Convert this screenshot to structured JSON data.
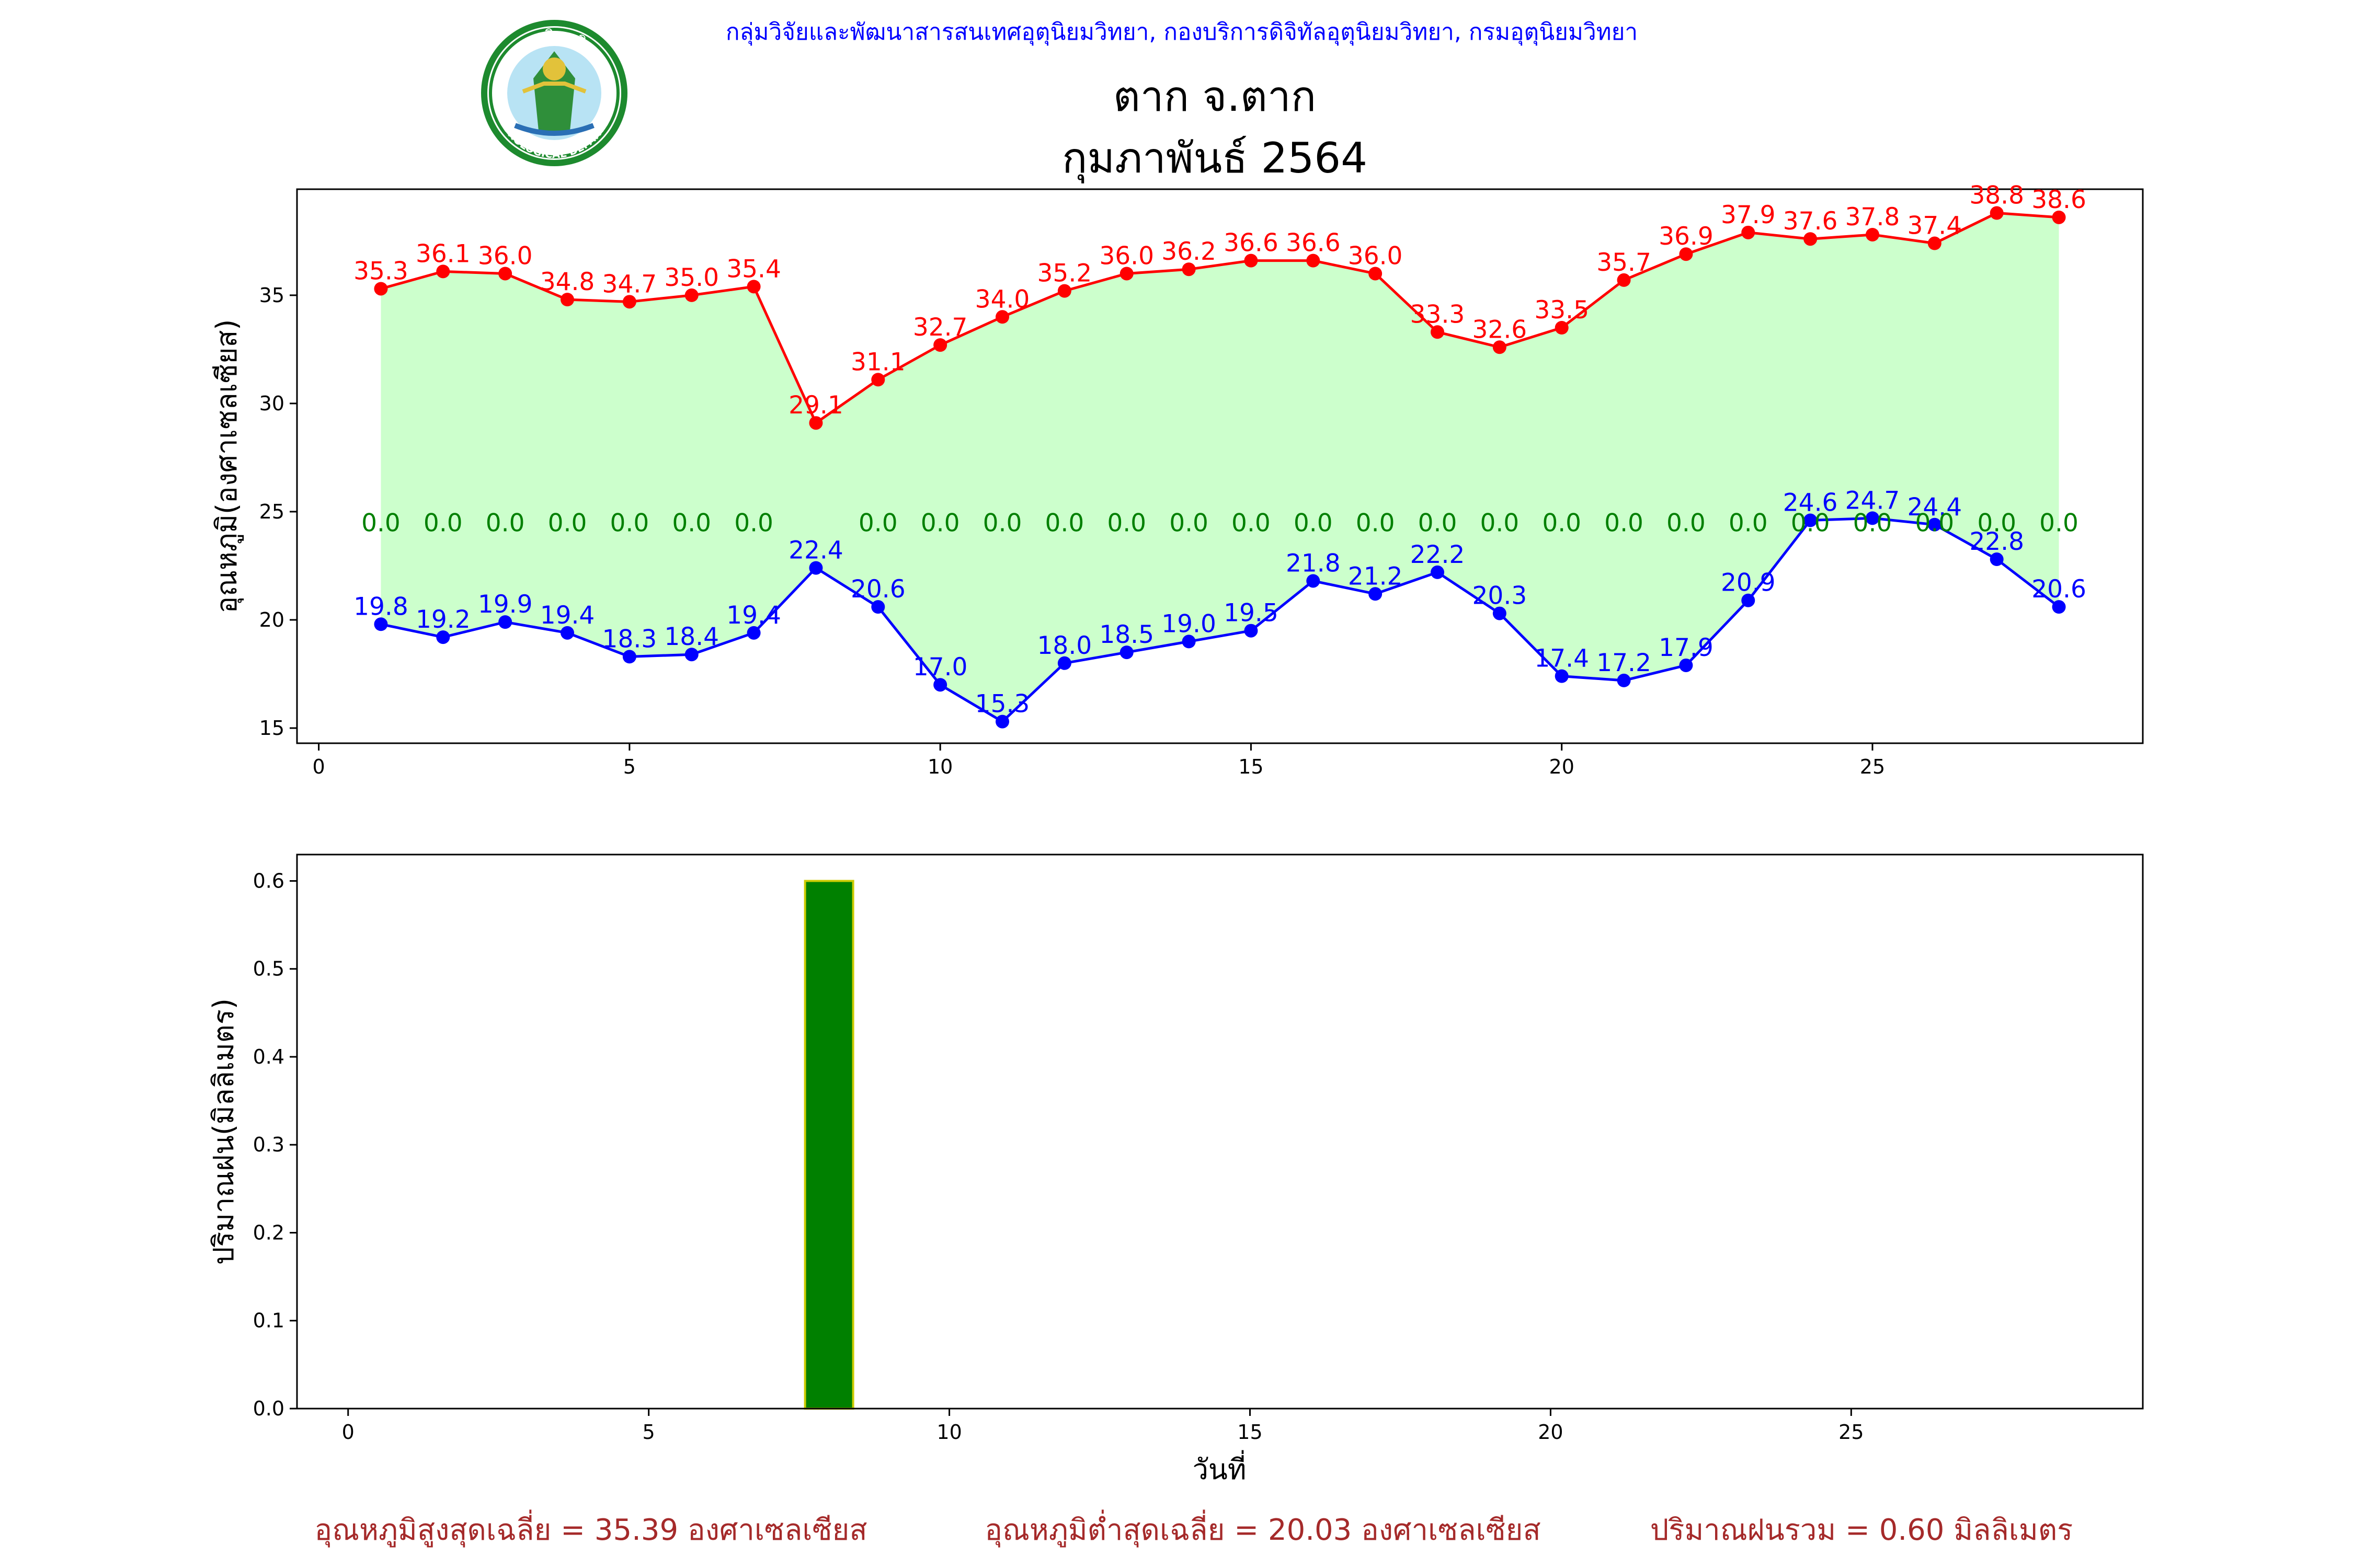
{
  "header": {
    "department_line": "กลุ่มวิจัยและพัฒนาสารสนเทศอุตุนิยมวิทยา, กองบริการดิจิทัลอุตุนิยมวิทยา, กรมอุตุนิยมวิทยา",
    "logo_text_top": "กรมอุตุนิยมวิทยา",
    "logo_text_bottom": "METEOROLOGICAL DEPARTMENT"
  },
  "colors": {
    "max_line": "#ff0000",
    "min_line": "#0000ff",
    "rain_label": "#008000",
    "fill_band": "#ccffcc",
    "rain_bar": "#008000",
    "rain_bar_edge": "#cccc00",
    "department_text": "#0000ff",
    "footer_text": "#a52a2a"
  },
  "chart_data": [
    {
      "type": "line",
      "title": "ตาก จ.ตาก",
      "subtitle": "กุมภาพันธ์ 2564",
      "ylabel": "อุณหภูมิ(องศาเซลเซียส)",
      "xlim": [
        -0.35,
        29.35
      ],
      "ylim": [
        14.3,
        39.9
      ],
      "xticks": [
        0,
        5,
        10,
        15,
        20,
        25
      ],
      "yticks": [
        15,
        20,
        25,
        30,
        35
      ],
      "x": [
        1,
        2,
        3,
        4,
        5,
        6,
        7,
        8,
        9,
        10,
        11,
        12,
        13,
        14,
        15,
        16,
        17,
        18,
        19,
        20,
        21,
        22,
        23,
        24,
        25,
        26,
        27,
        28
      ],
      "series": [
        {
          "key": "max",
          "values": [
            35.3,
            36.1,
            36.0,
            34.8,
            34.7,
            35.0,
            35.4,
            29.1,
            31.1,
            32.7,
            34.0,
            35.2,
            36.0,
            36.2,
            36.6,
            36.6,
            36.0,
            33.3,
            32.6,
            33.5,
            35.7,
            36.9,
            37.9,
            37.6,
            37.8,
            37.4,
            38.8,
            38.6
          ],
          "labels": [
            "35.3",
            "36.1",
            "36.0",
            "34.8",
            "34.7",
            "35.0",
            "35.4",
            "29.1",
            "31.1",
            "32.7",
            "34.0",
            "35.2",
            "36.0",
            "36.2",
            "36.6",
            "36.6",
            "36.0",
            "33.3",
            "32.6",
            "33.5",
            "35.7",
            "36.9",
            "37.9",
            "37.6",
            "37.8",
            "37.4",
            "38.8",
            "38.6"
          ]
        },
        {
          "key": "min",
          "values": [
            19.8,
            19.2,
            19.9,
            19.4,
            18.3,
            18.4,
            19.4,
            22.4,
            20.6,
            17.0,
            15.3,
            18.0,
            18.5,
            19.0,
            19.5,
            21.8,
            21.2,
            22.2,
            20.3,
            17.4,
            17.2,
            17.9,
            20.9,
            24.6,
            24.7,
            24.4,
            22.8,
            20.6
          ],
          "labels": [
            "19.8",
            "19.2",
            "19.9",
            "19.4",
            "18.3",
            "18.4",
            "19.4",
            "22.4",
            "20.6",
            "17.0",
            "15.3",
            "18.0",
            "18.5",
            "19.0",
            "19.5",
            "21.8",
            "21.2",
            "22.2",
            "20.3",
            "17.4",
            "17.2",
            "17.9",
            "20.9",
            "24.6",
            "24.7",
            "24.4",
            "22.8",
            "20.6"
          ]
        }
      ],
      "rain_labels": {
        "y": 24.5,
        "x": [
          1,
          2,
          3,
          4,
          5,
          6,
          7,
          9,
          10,
          11,
          12,
          13,
          14,
          15,
          16,
          17,
          18,
          19,
          20,
          21,
          22,
          23,
          24,
          25,
          26,
          27,
          28
        ],
        "labels": [
          "0.0",
          "0.0",
          "0.0",
          "0.0",
          "0.0",
          "0.0",
          "0.0",
          "0.0",
          "0.0",
          "0.0",
          "0.0",
          "0.0",
          "0.0",
          "0.0",
          "0.0",
          "0.0",
          "0.0",
          "0.0",
          "0.0",
          "0.0",
          "0.0",
          "0.0",
          "0.0",
          "0.0",
          "0.0",
          "0.0",
          "0.0"
        ]
      }
    },
    {
      "type": "bar",
      "ylabel": "ปริมาณฝน(มิลลิเมตร)",
      "xlabel": "วันที่",
      "xlim": [
        -0.85,
        29.85
      ],
      "ylim": [
        0,
        0.63
      ],
      "xticks": [
        0,
        5,
        10,
        15,
        20,
        25
      ],
      "yticks": [
        0.0,
        0.1,
        0.2,
        0.3,
        0.4,
        0.5,
        0.6
      ],
      "ytick_labels": [
        "0.0",
        "0.1",
        "0.2",
        "0.3",
        "0.4",
        "0.5",
        "0.6"
      ],
      "bar_width": 0.8,
      "x": [
        1,
        2,
        3,
        4,
        5,
        6,
        7,
        8,
        9,
        10,
        11,
        12,
        13,
        14,
        15,
        16,
        17,
        18,
        19,
        20,
        21,
        22,
        23,
        24,
        25,
        26,
        27,
        28
      ],
      "values": [
        0,
        0,
        0,
        0,
        0,
        0,
        0,
        0.6,
        0,
        0,
        0,
        0,
        0,
        0,
        0,
        0,
        0,
        0,
        0,
        0,
        0,
        0,
        0,
        0,
        0,
        0,
        0,
        0
      ]
    }
  ],
  "footer": {
    "avg_max": "อุณหภูมิสูงสุดเฉลี่ย = 35.39 องศาเซลเซียส",
    "avg_min": "อุณหภูมิต่ำสุดเฉลี่ย = 20.03 องศาเซลเซียส",
    "rain_total": "ปริมาณฝนรวม = 0.60 มิลลิเมตร"
  }
}
